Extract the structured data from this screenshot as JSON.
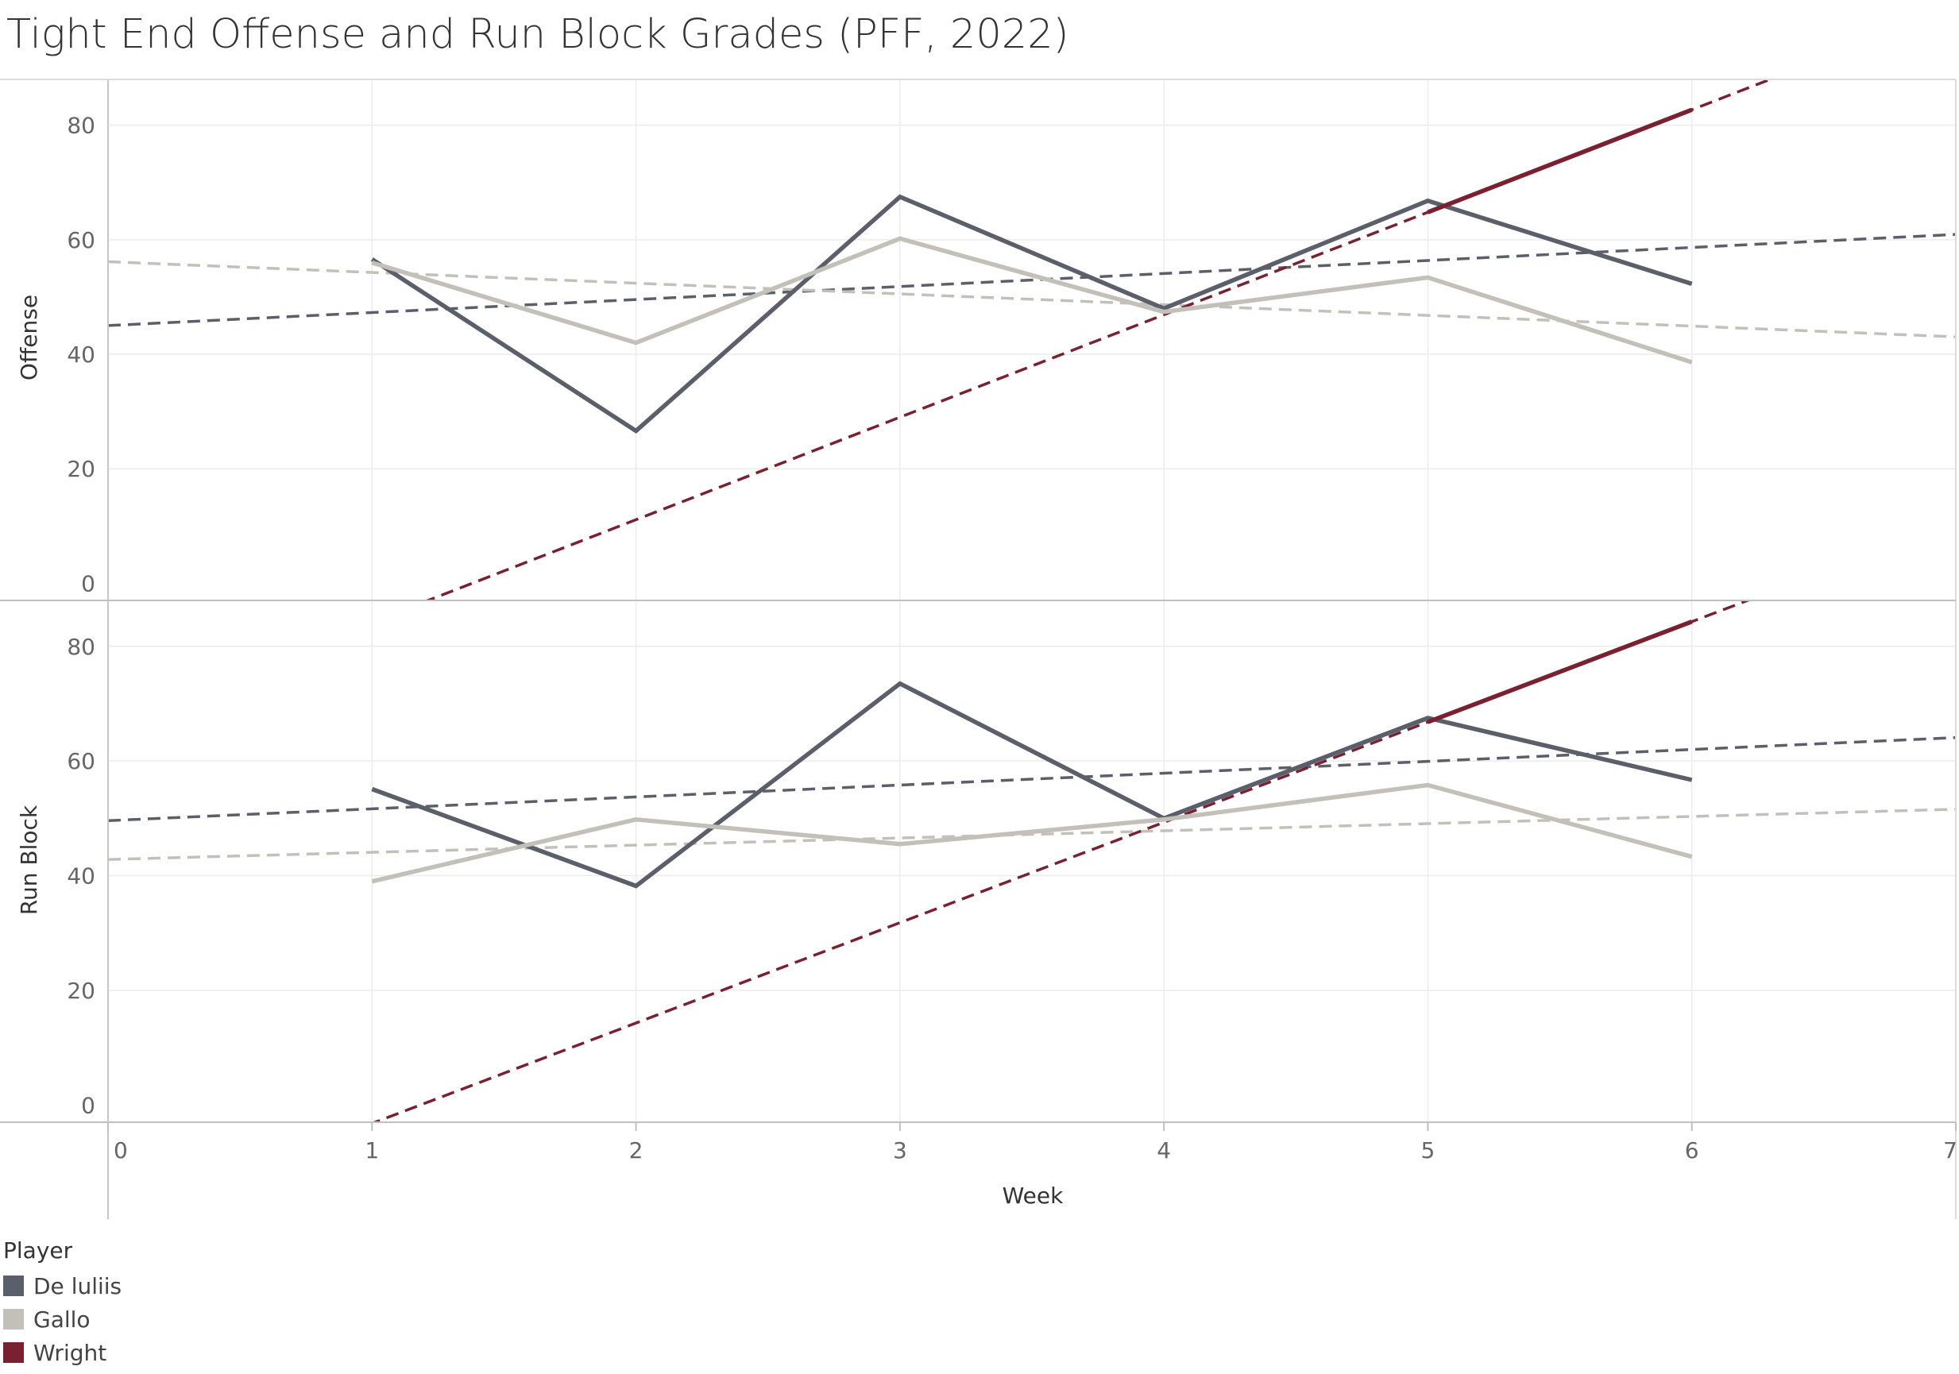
{
  "chart_data": {
    "type": "line",
    "title": "Tight End Offense and Run Block Grades (PFF, 2022)",
    "xlabel": "Week",
    "xlim": [
      0,
      7
    ],
    "x_ticks": [
      "0",
      "1",
      "2",
      "3",
      "4",
      "5",
      "6",
      "7"
    ],
    "y_ticks": [
      "0",
      "20",
      "40",
      "60",
      "80"
    ],
    "grid": true,
    "legend": {
      "title": "Player",
      "placement": "bottom-left"
    },
    "colors": {
      "De luliis": "#5b5f69",
      "Gallo": "#c2c0b9",
      "Wright": "#7a2131"
    },
    "trend_lines": {
      "style": "dashed",
      "type": "linear"
    },
    "panels": [
      {
        "ylabel": "Offense",
        "ylim": [
          -3,
          88
        ],
        "series": [
          {
            "name": "De luliis",
            "x": [
              1,
              2,
              3,
              4,
              5,
              6
            ],
            "values": [
              56.6,
              26.6,
              67.5,
              48.0,
              66.8,
              52.3
            ]
          },
          {
            "name": "Gallo",
            "x": [
              1,
              2,
              3,
              4,
              5,
              6
            ],
            "values": [
              56.0,
              42.0,
              60.2,
              47.4,
              53.4,
              38.6
            ]
          },
          {
            "name": "Wright",
            "x": [
              5,
              6
            ],
            "values": [
              64.8,
              82.7
            ]
          }
        ]
      },
      {
        "ylabel": "Run Block",
        "ylim": [
          -3,
          88
        ],
        "series": [
          {
            "name": "De luliis",
            "x": [
              1,
              2,
              3,
              4,
              5,
              6
            ],
            "values": [
              55.1,
              38.2,
              73.5,
              50.0,
              67.5,
              56.7
            ]
          },
          {
            "name": "Gallo",
            "x": [
              1,
              2,
              3,
              4,
              5,
              6
            ],
            "values": [
              39.0,
              49.8,
              45.5,
              49.8,
              55.8,
              43.3
            ]
          },
          {
            "name": "Wright",
            "x": [
              5,
              6
            ],
            "values": [
              66.8,
              84.3
            ]
          }
        ]
      }
    ]
  }
}
